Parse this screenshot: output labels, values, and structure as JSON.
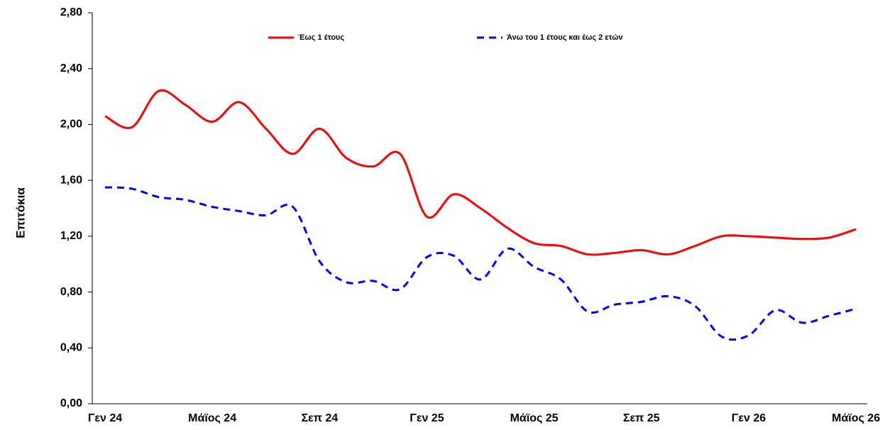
{
  "chart_data": {
    "type": "line",
    "y_label": "Επιτόκια",
    "categories": [
      "Γεν 24",
      null,
      null,
      null,
      "Μάϊος 24",
      null,
      null,
      null,
      "Σεπ 24",
      null,
      null,
      null,
      "Γεν 25",
      null,
      null,
      null,
      "Μάϊος 25",
      null,
      null,
      null,
      "Σεπ 25",
      null,
      null,
      null,
      "Γεν 26",
      null,
      null,
      null,
      "Μάϊος 26"
    ],
    "series": [
      {
        "name": "Έως 1 έτους",
        "color": "#ff0000",
        "dash": false,
        "values": [
          2.06,
          1.98,
          2.24,
          2.14,
          2.02,
          2.16,
          1.97,
          1.79,
          1.97,
          1.76,
          1.7,
          1.79,
          1.34,
          1.5,
          1.4,
          1.26,
          1.15,
          1.13,
          1.07,
          1.08,
          1.1,
          1.07,
          1.13,
          1.2,
          1.2,
          1.19,
          1.18,
          1.19,
          1.25
        ]
      },
      {
        "name": "Άνω του 1 έτους και έως 2 ετών",
        "color": "#0000ff",
        "dash": true,
        "values": [
          1.55,
          1.54,
          1.48,
          1.46,
          1.41,
          1.38,
          1.35,
          1.41,
          1.02,
          0.87,
          0.88,
          0.82,
          1.05,
          1.06,
          0.89,
          1.11,
          0.98,
          0.89,
          0.66,
          0.71,
          0.73,
          0.77,
          0.7,
          0.48,
          0.49,
          0.67,
          0.58,
          0.63,
          0.68
        ]
      }
    ],
    "ylim": [
      0,
      2.8
    ],
    "yticks": [
      {
        "value": 0,
        "label": "0,00"
      },
      {
        "value": 0.4,
        "label": "0,40"
      },
      {
        "value": 0.8,
        "label": "0,80"
      },
      {
        "value": 1.2,
        "label": "1,20"
      },
      {
        "value": 1.6,
        "label": "1,60"
      },
      {
        "value": 2.0,
        "label": "2,00"
      },
      {
        "value": 2.4,
        "label": "2,40"
      },
      {
        "value": 2.8,
        "label": "2,80"
      }
    ],
    "grid": false,
    "legend": "top"
  }
}
